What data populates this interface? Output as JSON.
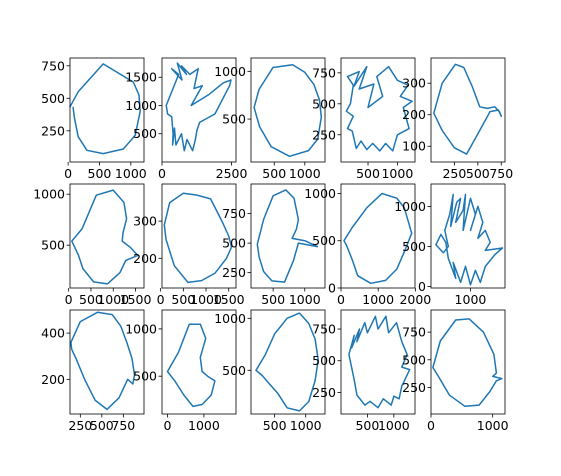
{
  "chart_data": [
    {
      "type": "line",
      "xlim": [
        30,
        1210
      ],
      "ylim": [
        10,
        810
      ],
      "xticks": [
        0,
        500,
        1000
      ],
      "yticks": [
        250,
        500,
        750
      ],
      "x": [
        30,
        160,
        560,
        1040,
        1130,
        1150,
        1070,
        880,
        560,
        300,
        160,
        100,
        80
      ],
      "y": [
        435,
        550,
        765,
        625,
        525,
        400,
        215,
        110,
        75,
        100,
        205,
        350,
        430
      ]
    },
    {
      "type": "line",
      "xlim": [
        0,
        2660
      ],
      "ylim": [
        0,
        1840
      ],
      "xticks": [
        0,
        2500
      ],
      "yticks": [
        500,
        1000,
        1500
      ],
      "x": [
        150,
        600,
        350,
        720,
        550,
        880,
        700,
        1000,
        1300,
        1150,
        1450,
        1050,
        1700,
        2200,
        2480,
        2430,
        1900,
        1350,
        1250,
        1200,
        1100,
        900,
        800,
        700,
        500,
        450,
        380,
        400,
        350,
        200,
        150
      ],
      "y": [
        1000,
        1550,
        1650,
        1450,
        1750,
        1550,
        1700,
        1550,
        1650,
        1300,
        1350,
        1000,
        1200,
        1400,
        1450,
        1350,
        850,
        700,
        550,
        400,
        200,
        400,
        200,
        500,
        300,
        600,
        300,
        500,
        800,
        850,
        1000
      ]
    },
    {
      "type": "line",
      "xlim": [
        120,
        1330
      ],
      "ylim": [
        50,
        1140
      ],
      "xticks": [
        500,
        1000
      ],
      "yticks": [
        500,
        1000
      ],
      "x": [
        170,
        250,
        480,
        800,
        1000,
        1150,
        1240,
        1270,
        1210,
        1060,
        750,
        450,
        260,
        170
      ],
      "y": [
        620,
        810,
        1040,
        1070,
        990,
        860,
        700,
        520,
        290,
        170,
        110,
        210,
        420,
        620
      ]
    },
    {
      "type": "line",
      "xlim": [
        40,
        1300
      ],
      "ylim": [
        30,
        870
      ],
      "xticks": [
        500,
        1000
      ],
      "yticks": [
        250,
        500,
        750
      ],
      "x": [
        200,
        250,
        150,
        350,
        260,
        480,
        350,
        600,
        500,
        750,
        650,
        850,
        1000,
        1180,
        1050,
        1250,
        1100,
        1200,
        1000,
        920,
        800,
        700,
        580,
        480,
        380,
        300,
        230,
        150,
        250,
        130,
        200
      ],
      "y": [
        500,
        650,
        720,
        760,
        640,
        800,
        620,
        660,
        470,
        560,
        720,
        800,
        690,
        650,
        560,
        520,
        470,
        300,
        250,
        120,
        180,
        120,
        180,
        130,
        200,
        140,
        280,
        300,
        400,
        440,
        500
      ]
    },
    {
      "type": "line",
      "xlim": [
        0,
        790
      ],
      "ylim": [
        50,
        380
      ],
      "xticks": [
        250,
        500,
        750
      ],
      "yticks": [
        100,
        200,
        300
      ],
      "x": [
        30,
        120,
        260,
        350,
        440,
        520,
        600,
        680,
        730,
        750,
        720,
        630,
        520,
        380,
        250,
        120,
        30
      ],
      "y": [
        205,
        300,
        360,
        350,
        290,
        225,
        220,
        225,
        210,
        195,
        215,
        210,
        150,
        75,
        95,
        150,
        205
      ]
    },
    {
      "type": "line",
      "xlim": [
        30,
        1690
      ],
      "ylim": [
        80,
        1100
      ],
      "xticks": [
        0,
        500,
        1000,
        1500
      ],
      "yticks": [
        500,
        1000
      ],
      "x": [
        70,
        300,
        620,
        1000,
        1240,
        1300,
        1220,
        1200,
        1380,
        1550,
        1280,
        1150,
        870,
        560,
        320,
        220,
        70
      ],
      "y": [
        540,
        660,
        990,
        1040,
        920,
        760,
        620,
        540,
        480,
        400,
        350,
        230,
        120,
        140,
        270,
        400,
        540
      ]
    },
    {
      "type": "line",
      "xlim": [
        30,
        1660
      ],
      "ylim": [
        120,
        400
      ],
      "xticks": [
        0,
        500,
        1000,
        1500
      ],
      "yticks": [
        200,
        300
      ],
      "x": [
        80,
        200,
        500,
        800,
        1100,
        1350,
        1500,
        1560,
        1450,
        1200,
        900,
        600,
        300,
        120,
        80
      ],
      "y": [
        290,
        350,
        375,
        370,
        360,
        300,
        260,
        230,
        200,
        160,
        140,
        135,
        180,
        250,
        290
      ]
    },
    {
      "type": "line",
      "xlim": [
        150,
        1320
      ],
      "ylim": [
        120,
        1000
      ],
      "xticks": [
        500,
        1000
      ],
      "yticks": [
        250,
        500,
        750
      ],
      "x": [
        250,
        350,
        500,
        700,
        830,
        900,
        870,
        800,
        1000,
        1200,
        900,
        820,
        680,
        480,
        350,
        280,
        250
      ],
      "y": [
        490,
        700,
        900,
        950,
        880,
        700,
        620,
        540,
        520,
        470,
        500,
        350,
        170,
        180,
        260,
        380,
        490
      ]
    },
    {
      "type": "line",
      "xlim": [
        0,
        1990
      ],
      "ylim": [
        0,
        1100
      ],
      "xticks": [
        0,
        1000,
        2000
      ],
      "yticks": [
        0,
        500,
        1000
      ],
      "x": [
        80,
        300,
        700,
        1100,
        1500,
        1700,
        1900,
        1700,
        1500,
        1200,
        800,
        450,
        300,
        150,
        80
      ],
      "y": [
        500,
        640,
        850,
        1000,
        950,
        850,
        580,
        380,
        200,
        80,
        50,
        130,
        300,
        450,
        500
      ]
    },
    {
      "type": "line",
      "xlim": [
        200,
        1700
      ],
      "ylim": [
        -20,
        1280
      ],
      "xticks": [
        1000
      ],
      "yticks": [
        0,
        500,
        1000
      ],
      "x": [
        500,
        400,
        300,
        450,
        550,
        480,
        580,
        650,
        600,
        720,
        800,
        700,
        850,
        900,
        850,
        1000,
        1100,
        1000,
        1150,
        1250,
        1150,
        1300,
        1400,
        1300,
        1650,
        1500,
        1300,
        1200,
        1100,
        1000,
        900,
        800,
        650,
        700,
        550,
        500
      ],
      "y": [
        550,
        650,
        520,
        420,
        500,
        700,
        900,
        1150,
        750,
        1050,
        1100,
        800,
        950,
        1150,
        700,
        1100,
        900,
        700,
        1000,
        800,
        600,
        700,
        550,
        450,
        480,
        400,
        250,
        50,
        200,
        20,
        250,
        50,
        300,
        100,
        350,
        550
      ]
    },
    {
      "type": "line",
      "xlim": [
        130,
        990
      ],
      "ylim": [
        50,
        500
      ],
      "xticks": [
        250,
        500,
        750
      ],
      "yticks": [
        200,
        400
      ],
      "x": [
        140,
        250,
        450,
        620,
        720,
        790,
        850,
        880,
        860,
        800,
        700,
        560,
        420,
        300,
        200,
        150,
        140
      ],
      "y": [
        360,
        450,
        490,
        480,
        430,
        360,
        290,
        220,
        180,
        200,
        120,
        70,
        110,
        200,
        290,
        330,
        360
      ]
    },
    {
      "type": "line",
      "xlim": [
        -150,
        1880
      ],
      "ylim": [
        100,
        1200
      ],
      "xticks": [
        0,
        1000
      ],
      "yticks": [
        500,
        1000
      ],
      "x": [
        0,
        300,
        600,
        900,
        1050,
        900,
        950,
        1100,
        1300,
        1200,
        950,
        700,
        450,
        200,
        0
      ],
      "y": [
        550,
        750,
        1050,
        1050,
        900,
        700,
        550,
        500,
        450,
        300,
        200,
        180,
        300,
        450,
        550
      ]
    },
    {
      "type": "line",
      "xlim": [
        120,
        1310
      ],
      "ylim": [
        80,
        1080
      ],
      "xticks": [
        500,
        1000
      ],
      "yticks": [
        500,
        1000
      ],
      "x": [
        200,
        350,
        500,
        700,
        900,
        1050,
        1150,
        1200,
        1150,
        1050,
        900,
        700,
        550,
        400,
        300,
        200
      ],
      "y": [
        500,
        650,
        850,
        1000,
        1050,
        950,
        800,
        600,
        400,
        200,
        110,
        140,
        280,
        380,
        450,
        500
      ]
    },
    {
      "type": "line",
      "xlim": [
        0,
        1400
      ],
      "ylim": [
        80,
        900
      ],
      "xticks": [
        500,
        1000
      ],
      "yticks": [
        250,
        500,
        750
      ],
      "x": [
        150,
        250,
        200,
        350,
        300,
        450,
        500,
        650,
        700,
        850,
        900,
        1050,
        1150,
        1250,
        1150,
        1300,
        1150,
        1100,
        1000,
        950,
        800,
        700,
        550,
        450,
        300,
        250,
        150
      ],
      "y": [
        550,
        700,
        600,
        750,
        650,
        800,
        720,
        850,
        750,
        850,
        720,
        800,
        650,
        550,
        450,
        430,
        300,
        200,
        220,
        150,
        200,
        130,
        180,
        150,
        230,
        350,
        550
      ]
    },
    {
      "type": "line",
      "xlim": [
        0,
        1200
      ],
      "ylim": [
        10,
        950
      ],
      "xticks": [
        0,
        1000
      ],
      "yticks": [
        250,
        500,
        750
      ],
      "x": [
        30,
        150,
        400,
        620,
        850,
        1020,
        1060,
        1000,
        1150,
        1060,
        950,
        780,
        550,
        300,
        120,
        30
      ],
      "y": [
        430,
        670,
        860,
        870,
        750,
        550,
        380,
        350,
        330,
        310,
        210,
        90,
        80,
        180,
        350,
        430
      ]
    }
  ],
  "colors": {
    "line": "#1f77b4",
    "axes": "#000000",
    "background": "#ffffff"
  }
}
